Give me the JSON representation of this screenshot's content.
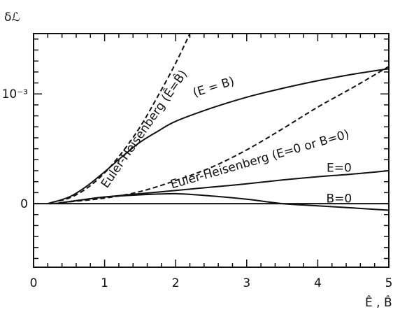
{
  "chart_data": {
    "type": "line",
    "ylabel": "δℒ",
    "xlabel": "Ê , B̂",
    "xlim": [
      0,
      5
    ],
    "ylim": [
      -0.00058,
      0.00155
    ],
    "x_ticks": [
      {
        "value": 0,
        "label": "0"
      },
      {
        "value": 1,
        "label": "1"
      },
      {
        "value": 2,
        "label": "2"
      },
      {
        "value": 3,
        "label": "3"
      },
      {
        "value": 4,
        "label": "4"
      },
      {
        "value": 5,
        "label": "5"
      }
    ],
    "y_ticks": [
      {
        "value": 0,
        "label": "0"
      },
      {
        "value": 0.001,
        "label": "10⁻³"
      }
    ],
    "grid": false,
    "series": [
      {
        "name": "Euler-Heisenberg (Ê=B̂)",
        "style": "dashed",
        "points": [
          [
            0.25,
            1e-05
          ],
          [
            0.5,
            5e-05
          ],
          [
            0.75,
            0.00014
          ],
          [
            1.0,
            0.00028
          ],
          [
            1.25,
            0.00047
          ],
          [
            1.5,
            0.0007
          ],
          [
            1.75,
            0.00098
          ],
          [
            2.0,
            0.00128
          ],
          [
            2.2,
            0.00155
          ]
        ]
      },
      {
        "name": "(E = B)",
        "style": "solid",
        "points": [
          [
            0.2,
            0.0
          ],
          [
            0.5,
            6e-05
          ],
          [
            0.75,
            0.00016
          ],
          [
            1.0,
            0.00029
          ],
          [
            1.25,
            0.00043
          ],
          [
            1.5,
            0.00056
          ],
          [
            1.75,
            0.00066
          ],
          [
            2.0,
            0.00075
          ],
          [
            2.5,
            0.00087
          ],
          [
            3.0,
            0.00097
          ],
          [
            3.5,
            0.00105
          ],
          [
            4.0,
            0.00112
          ],
          [
            4.5,
            0.00118
          ],
          [
            5.0,
            0.00123
          ]
        ]
      },
      {
        "name": "Euler-Heisenberg (E=0 or B=0)",
        "style": "dashed",
        "points": [
          [
            0.4,
            1e-05
          ],
          [
            1.0,
            5e-05
          ],
          [
            1.5,
            0.00011
          ],
          [
            2.0,
            0.00021
          ],
          [
            2.5,
            0.00033
          ],
          [
            3.0,
            0.00049
          ],
          [
            3.5,
            0.00068
          ],
          [
            4.0,
            0.00088
          ],
          [
            4.5,
            0.00106
          ],
          [
            5.0,
            0.00125
          ]
        ]
      },
      {
        "name": "E=0",
        "style": "solid",
        "points": [
          [
            0.3,
            0.0
          ],
          [
            0.75,
            4e-05
          ],
          [
            1.0,
            6e-05
          ],
          [
            1.5,
            9e-05
          ],
          [
            2.0,
            0.00012
          ],
          [
            2.5,
            0.00015
          ],
          [
            3.0,
            0.00018
          ],
          [
            3.5,
            0.000215
          ],
          [
            4.0,
            0.000245
          ],
          [
            4.5,
            0.00027
          ],
          [
            5.0,
            0.0003
          ]
        ]
      },
      {
        "name": "B=0",
        "style": "solid",
        "points": [
          [
            0.3,
            0.0
          ],
          [
            0.75,
            4e-05
          ],
          [
            1.0,
            6e-05
          ],
          [
            1.5,
            8e-05
          ],
          [
            2.0,
            9e-05
          ],
          [
            2.5,
            7e-05
          ],
          [
            3.0,
            4e-05
          ],
          [
            3.5,
            0.0
          ],
          [
            4.0,
            -2e-05
          ],
          [
            4.5,
            -4e-05
          ],
          [
            5.0,
            -6e-05
          ]
        ]
      },
      {
        "name": "",
        "style": "solid",
        "points": [
          [
            0,
            0
          ],
          [
            5,
            0
          ]
        ]
      }
    ],
    "annotations": [
      {
        "text": "Euler-Heisenberg (Ê=B̂)",
        "x": 1.6,
        "y": 0.00066,
        "angle": -55
      },
      {
        "text": "(E = B)",
        "x": 2.55,
        "y": 0.00103,
        "angle": -17
      },
      {
        "text": "Euler-Heisenberg (E=0 or B=0)",
        "x": 3.2,
        "y": 0.00037,
        "angle": -16
      },
      {
        "text": "E=0",
        "x": 4.3,
        "y": 0.00029,
        "angle": 0
      },
      {
        "text": "B=0",
        "x": 4.3,
        "y": 1e-05,
        "angle": 0
      }
    ]
  }
}
